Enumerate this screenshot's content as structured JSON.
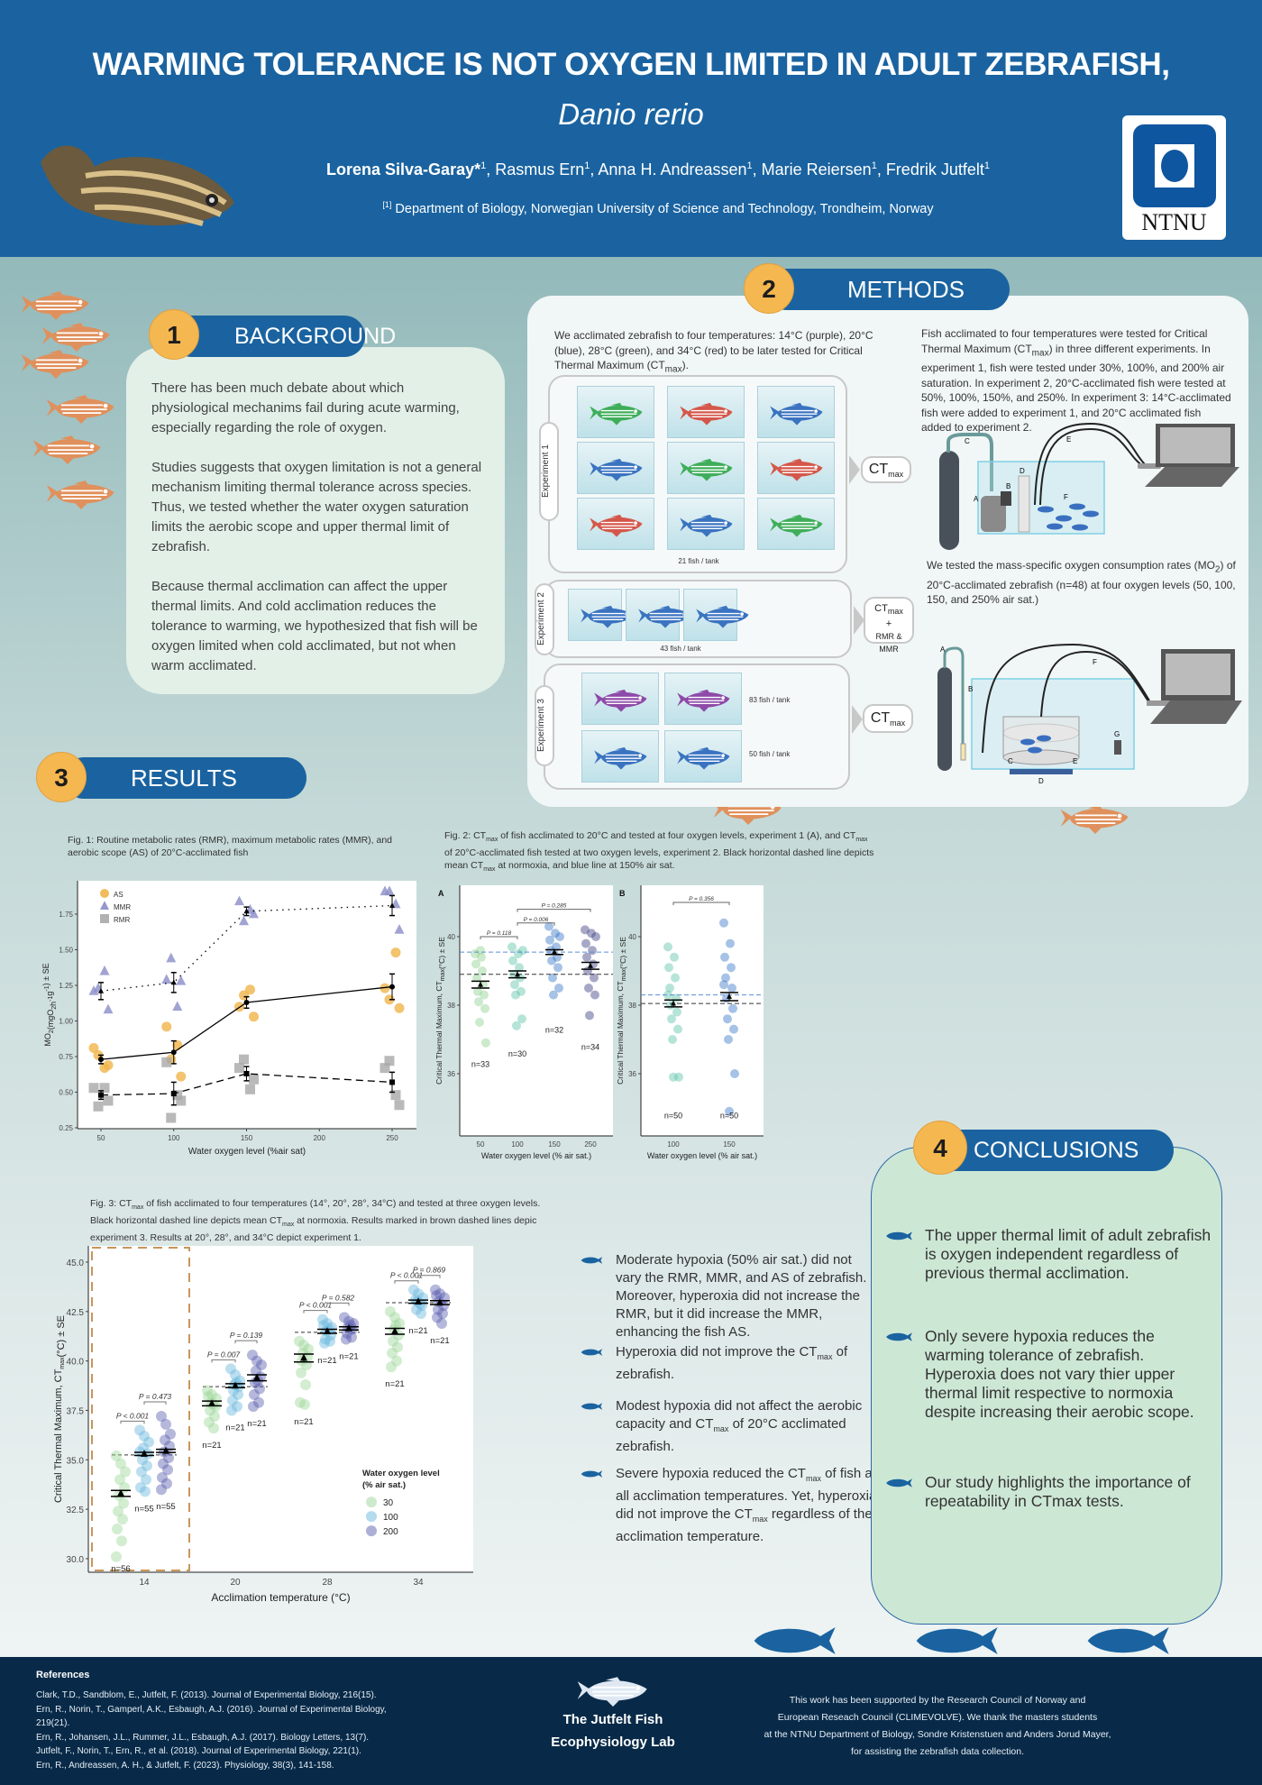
{
  "header": {
    "title": "WARMING TOLERANCE IS NOT OXYGEN LIMITED IN ADULT ZEBRAFISH,",
    "subtitle": "Danio rerio",
    "authors": [
      {
        "name": "Lorena Silva-Garay*",
        "sup": "1",
        "bold": true
      },
      {
        "name": ", Rasmus Ern",
        "sup": "1"
      },
      {
        "name": ", Anna H. Andreassen",
        "sup": "1"
      },
      {
        "name": ", Marie Reiersen",
        "sup": "1"
      },
      {
        "name": ", Fredrik Jutfelt",
        "sup": "1"
      }
    ],
    "affiliation_mark": "[1]",
    "affiliation": " Department of Biology, Norwegian University of Science and Technology, Trondheim, Norway",
    "logo_text": "NTNU"
  },
  "background": {
    "number": "1",
    "title": "BACKGROUND",
    "paragraphs": [
      "There has been much debate about which physiological mechanims fail during acute warming, especially regarding the role of oxygen.",
      "Studies suggests that oxygen limitation is not a general mechanism limiting thermal tolerance across species. Thus, we tested whether the water oxygen saturation limits the aerobic scope and upper thermal limit of zebrafish.",
      "Because thermal acclimation can affect the upper thermal limits. And cold acclimation reduces the tolerance to warming, we hypothesized that fish will be oxygen limited when cold acclimated, but not when warm acclimated."
    ]
  },
  "methods": {
    "number": "2",
    "title": "METHODS",
    "intro": [
      "We acclimated zebrafish to four temperatures: 14°C (purple), 20°C (blue), 28°C (green), and 34°C (red) to be later tested for Critical Thermal Maximum (CT",
      {
        "sub": "max"
      },
      ")."
    ],
    "fish_colors": {
      "purple": "#8e4aa8",
      "blue": "#3a73c0",
      "green": "#3fae5a",
      "red": "#d4574a"
    },
    "experiments": [
      {
        "label": "Experiment 1",
        "count": "21 fish / tank",
        "tanks": [
          "green",
          "red",
          "blue",
          "blue",
          "green",
          "red",
          "red",
          "blue",
          "green"
        ]
      },
      {
        "label": "Experiment 2",
        "count": "43 fish / tank",
        "tanks": [
          "blue",
          "blue",
          "blue"
        ]
      },
      {
        "label": "Experiment 3",
        "counts": [
          "83 fish / tank",
          "50 fish / tank"
        ],
        "tanks": [
          "purple",
          "purple",
          "blue",
          "blue"
        ]
      }
    ],
    "outputs": {
      "ct": "CT",
      "max": "max",
      "plus": "+",
      "rmr_mmr": "RMR & MMR"
    },
    "text_ctmax": [
      "Fish acclimated to four temperatures were tested for Critical Thermal Maximum (CT",
      {
        "sub": "max"
      },
      ") in three different experiments. In experiment 1, fish were tested under 30%, 100%, and 200% air saturation. In experiment 2, 20°C-acclimated fish were tested at 50%, 100%, 150%, and 250%. In experiment 3: 14°C-acclimated fish were added to experiment 1, and 20°C acclimated fish added to experiment 2."
    ],
    "setup1_labels": [
      "A",
      "B",
      "C",
      "D",
      "E",
      "F"
    ],
    "text_mo2": [
      "We tested the mass-specific oxygen consumption rates (MO",
      {
        "sub": "2"
      },
      ") of 20°C-acclimated zebrafish (n=48) at four oxygen levels (50, 100, 150, and 250% air sat.)"
    ],
    "setup2_labels": [
      "A",
      "B",
      "C",
      "D",
      "E",
      "F",
      "G"
    ]
  },
  "results": {
    "number": "3",
    "title": "RESULTS",
    "fig1_caption": [
      "Fig. 1: Routine metabolic rates (RMR), maximum metabolic rates (MMR), and aerobic scope (AS) of 20°C-acclimated fish"
    ],
    "fig2_caption": [
      "Fig. 2: CT",
      {
        "sub": "max"
      },
      " of fish acclimated to 20°C and tested at four oxygen levels, experiment 1 (A), and CT",
      {
        "sub": "max"
      },
      " of 20°C-acclimated fish tested at two oxygen levels, experiment 2. Black horizontal dashed line depicts mean CT",
      {
        "sub": "max"
      },
      " at normoxia, and blue line at 150% air sat."
    ],
    "fig3_caption": [
      "Fig. 3: CT",
      {
        "sub": "max"
      },
      " of fish acclimated to four temperatures (14°, 20°, 28°, 34°C) and tested at three oxygen levels. Black horizontal dashed line depicts mean CT",
      {
        "sub": "max"
      },
      " at normoxia. Results marked in brown dashed lines depic experiment 3. Results at 20°, 28°, and 34°C depict experiment 1."
    ],
    "bullets": [
      [
        "Moderate hypoxia (50% air sat.) did not vary the RMR, MMR, and AS of zebrafish. Moreover, hyperoxia did not increase the RMR, but it did increase the MMR, enhancing the fish AS."
      ],
      [
        "Hyperoxia did not improve the CT",
        {
          "sub": "max"
        },
        " of zebrafish."
      ],
      [
        "Modest hypoxia did not affect the aerobic capacity and CT",
        {
          "sub": "max"
        },
        " of 20°C acclimated zebrafish."
      ],
      [
        "Severe hypoxia reduced the CT",
        {
          "sub": "max"
        },
        " of fish at all acclimation temperatures. Yet, hyperoxia did not improve the CT",
        {
          "sub": "max"
        },
        " regardless of the acclimation temperature."
      ]
    ]
  },
  "conclusions": {
    "number": "4",
    "title": "CONCLUSIONS",
    "items": [
      "The upper thermal limit of adult zebrafish is oxygen independent regardless of previous thermal acclimation.",
      "Only severe hypoxia reduces the warming tolerance of zebrafish. Hyperoxia does not vary thier upper thermal limit respective to normoxia despite increasing their aerobic scope.",
      "Our study highlights the importance of repeatability in CTmax tests."
    ]
  },
  "footer": {
    "references_title": "References",
    "references": [
      "Clark, T.D., Sandblom, E., Jutfelt, F. (2013). Journal of Experimental Biology, 216(15).",
      "Ern, R., Norin, T., Gamperl, A.K., Esbaugh, A.J. (2016). Journal of Experimental Biology, 219(21).",
      "Ern, R., Johansen, J.L., Rummer, J.L., Esbaugh, A.J. (2017). Biology Letters, 13(7).",
      "Jutfelt, F., Norin, T., Ern, R., et al. (2018). Journal of Experimental Biology, 221(1).",
      "Ern, R., Andreassen, A. H., & Jutfelt, F. (2023). Physiology, 38(3), 141-158."
    ],
    "lab_line1": "The Jutfelt Fish",
    "lab_line2": "Ecophysiology Lab",
    "acknowledgement": [
      "This work has been supported by the Research Council of Norway and",
      "European Reseach Council (CLIMEVOLVE). We thank the masters students",
      "at the NTNU Department of Biology, Sondre Kristenstuen and Anders Jorud Mayer,",
      "for assisting the zebrafish data collection."
    ]
  },
  "chart_data": [
    {
      "id": "fig1",
      "type": "scatter",
      "xlabel": "Water oxygen level (%air sat)",
      "ylabel": "MO2(mgO2h-1g-1) ± SE",
      "ylabel_parts": [
        "MO",
        {
          "sub": "2"
        },
        "(mgO",
        {
          "sub": "2"
        },
        "h",
        {
          "sup": "-1"
        },
        "g",
        {
          "sup": "-1"
        },
        ") ± SE"
      ],
      "xlim": [
        30,
        265
      ],
      "ylim": [
        0.25,
        1.95
      ],
      "xticks": [
        50,
        100,
        150,
        200,
        250
      ],
      "yticks": [
        0.25,
        0.5,
        0.75,
        1.0,
        1.25,
        1.5,
        1.75
      ],
      "ytick_labels": [
        "0.25",
        "0.50",
        "0.75",
        "1.00",
        "1.25",
        "1.50",
        "1.75"
      ],
      "legend": "top-left",
      "x": [
        50,
        100,
        150,
        250
      ],
      "series": [
        {
          "name": "AS",
          "color": "#f0b44a",
          "marker": "circle",
          "line": "solid",
          "mean": [
            0.73,
            0.78,
            1.13,
            1.24
          ],
          "se": [
            0.03,
            0.08,
            0.04,
            0.09
          ],
          "points": [
            [
              0.81,
              0.76,
              0.67,
              0.69
            ],
            [
              0.96,
              0.73,
              0.83,
              0.61
            ],
            [
              1.1,
              1.18,
              1.22,
              1.03
            ],
            [
              1.23,
              1.15,
              1.48,
              1.09
            ]
          ]
        },
        {
          "name": "MMR",
          "color": "#8a8cc8",
          "marker": "triangle",
          "line": "dotted",
          "mean": [
            1.21,
            1.27,
            1.77,
            1.81
          ],
          "se": [
            0.06,
            0.07,
            0.03,
            0.07
          ],
          "points": [
            [
              1.21,
              1.23,
              1.35,
              1.08
            ],
            [
              1.29,
              1.44,
              1.1,
              1.28
            ],
            [
              1.84,
              1.7,
              1.78,
              1.75
            ],
            [
              1.91,
              1.91,
              1.82,
              1.64
            ]
          ]
        },
        {
          "name": "RMR",
          "color": "#a8a8a8",
          "marker": "square",
          "line": "dashed",
          "mean": [
            0.48,
            0.49,
            0.63,
            0.57
          ],
          "se": [
            0.03,
            0.08,
            0.05,
            0.07
          ],
          "points": [
            [
              0.53,
              0.4,
              0.53,
              0.44
            ],
            [
              0.71,
              0.32,
              0.48,
              0.44
            ],
            [
              0.67,
              0.73,
              0.52,
              0.59
            ],
            [
              0.67,
              0.72,
              0.48,
              0.41
            ]
          ]
        }
      ]
    },
    {
      "id": "fig2",
      "type": "scatter",
      "panels": [
        {
          "label": "A",
          "xlabel": "Water oxygen level (% air sat.)",
          "ylabel": "Critical Thermal Maximum, CTmax(°C) ± SE",
          "ylim": [
            34.4,
            41.5
          ],
          "yticks": [
            36,
            38,
            40
          ],
          "categories": [
            "50",
            "100",
            "150",
            "250"
          ],
          "colors": [
            "#8fd08f",
            "#5ec4a8",
            "#3a78c8",
            "#3b3d80"
          ],
          "mean": [
            38.6,
            38.9,
            39.55,
            39.15
          ],
          "se": [
            0.1,
            0.1,
            0.07,
            0.1
          ],
          "n": [
            "n=33",
            "n=30",
            "n=32",
            "n=34"
          ],
          "points": [
            [
              39.5,
              39.4,
              39.2,
              39.0,
              38.8,
              38.6,
              38.4,
              38.3,
              38.1,
              37.9,
              37.5,
              36.9,
              39.6
            ],
            [
              39.7,
              39.5,
              39.3,
              39.1,
              38.9,
              38.8,
              38.6,
              38.4,
              38.3,
              37.6,
              37.4,
              39.6
            ],
            [
              40.3,
              40.1,
              39.9,
              39.7,
              39.6,
              39.4,
              39.3,
              39.1,
              38.8,
              38.5,
              38.3,
              40.0
            ],
            [
              40.2,
              40.1,
              39.8,
              39.6,
              39.4,
              39.2,
              39.0,
              38.8,
              38.5,
              38.3,
              37.7,
              40.0
            ]
          ],
          "ref_normoxia": 38.9,
          "ref_150": 39.55,
          "comparisons": [
            {
              "from": 0,
              "to": 1,
              "label": "P = 0.118"
            },
            {
              "from": 1,
              "to": 2,
              "label": "P = 0.006"
            },
            {
              "from": 1,
              "to": 3,
              "label": "P = 0.285"
            }
          ]
        },
        {
          "label": "B",
          "xlabel": "Water oxygen level (% air sat.)",
          "ylabel": "Critical Thermal Maximum, CTmax(°C) ± SE",
          "ylim": [
            34.4,
            41.5
          ],
          "yticks": [
            36,
            38,
            40
          ],
          "categories": [
            "100",
            "150"
          ],
          "colors": [
            "#5ec4a8",
            "#3a78c8"
          ],
          "mean": [
            38.05,
            38.25
          ],
          "se": [
            0.1,
            0.12
          ],
          "n": [
            "n=50",
            "n=50"
          ],
          "points": [
            [
              39.7,
              39.4,
              39.1,
              38.8,
              38.5,
              38.2,
              38.0,
              37.8,
              37.6,
              37.3,
              37.0,
              35.9,
              35.9,
              38.3
            ],
            [
              40.4,
              39.8,
              39.4,
              39.1,
              38.8,
              38.5,
              38.2,
              37.9,
              37.6,
              37.3,
              37.0,
              36.0,
              34.9,
              38.6
            ]
          ],
          "ref_normoxia": 38.05,
          "ref_150": 38.3,
          "comparisons": [
            {
              "from": 0,
              "to": 1,
              "label": "P = 0.356"
            }
          ]
        }
      ]
    },
    {
      "id": "fig3",
      "type": "scatter",
      "xlabel": "Acclimation temperature (°C)",
      "ylabel": "Critical Thermal Maximum, CTmax(°C) ± SE",
      "ylim": [
        29.5,
        45.6
      ],
      "yticks": [
        30.0,
        32.5,
        35.0,
        37.5,
        40.0,
        42.5,
        45.0
      ],
      "ytick_labels": [
        "30.0",
        "32.5",
        "35.0",
        "37.5",
        "40.0",
        "42.5",
        "45.0"
      ],
      "categories": [
        "14",
        "20",
        "28",
        "34"
      ],
      "legend": {
        "title_line1": "Water oxygen level",
        "title_line2": "(% air sat.)",
        "position": "bottom-right"
      },
      "series": [
        {
          "name": "30",
          "color": "#9ed69a",
          "mean": [
            33.3,
            37.85,
            40.15,
            41.5
          ],
          "se": [
            0.15,
            0.12,
            0.2,
            0.15
          ],
          "n": [
            "n=56",
            "n=21",
            "n=21",
            "n=21"
          ],
          "points": [
            [
              35.2,
              34.8,
              34.4,
              34.0,
              33.6,
              33.2,
              32.8,
              32.4,
              32.0,
              31.5,
              30.9,
              30.1
            ],
            [
              38.5,
              38.3,
              38.1,
              37.9,
              37.7,
              37.5,
              37.2,
              36.9,
              36.6,
              38.2,
              37.8
            ],
            [
              41.0,
              40.8,
              40.6,
              40.4,
              40.2,
              40.0,
              39.8,
              39.4,
              38.8,
              37.9,
              37.8
            ],
            [
              42.5,
              42.2,
              41.9,
              41.6,
              41.3,
              41.0,
              40.7,
              40.4,
              40.0,
              39.7,
              41.8
            ]
          ]
        },
        {
          "name": "100",
          "color": "#6ab7de",
          "mean": [
            35.3,
            38.75,
            41.5,
            43.0
          ],
          "se": [
            0.08,
            0.1,
            0.1,
            0.08
          ],
          "n": [
            "n=55",
            "n=21",
            "n=21",
            "n=21"
          ],
          "points": [
            [
              36.5,
              36.2,
              35.9,
              35.6,
              35.3,
              35.0,
              34.7,
              34.4,
              34.0,
              33.6,
              33.4,
              35.4
            ],
            [
              39.6,
              39.3,
              39.0,
              38.8,
              38.7,
              38.5,
              38.3,
              38.0,
              37.7,
              37.5,
              38.9
            ],
            [
              42.1,
              41.9,
              41.7,
              41.5,
              41.3,
              41.1,
              41.0,
              40.9,
              41.6,
              41.8
            ],
            [
              43.6,
              43.4,
              43.2,
              43.0,
              42.8,
              42.6,
              42.4,
              43.1,
              42.9
            ]
          ]
        },
        {
          "name": "200",
          "color": "#5b5fb0",
          "mean": [
            35.45,
            39.15,
            41.65,
            42.95
          ],
          "se": [
            0.08,
            0.15,
            0.08,
            0.1
          ],
          "n": [
            "n=55",
            "n=21",
            "n=21",
            "n=21"
          ],
          "points": [
            [
              37.2,
              36.8,
              36.3,
              36.0,
              35.7,
              35.4,
              35.1,
              34.8,
              34.5,
              34.1,
              33.8,
              33.5
            ],
            [
              40.3,
              40.0,
              39.8,
              39.5,
              39.2,
              38.9,
              38.6,
              38.3,
              37.9,
              37.7,
              39.0
            ],
            [
              42.2,
              42.0,
              41.9,
              41.7,
              41.6,
              41.4,
              41.2,
              41.1,
              41.8
            ],
            [
              43.6,
              43.4,
              43.2,
              43.0,
              42.8,
              42.6,
              42.4,
              42.2,
              41.9,
              43.3
            ]
          ]
        }
      ],
      "normoxia_mean": [
        35.25,
        38.7,
        41.45,
        42.95
      ],
      "comparisons": [
        [
          "P < 0.001",
          "P = 0.473"
        ],
        [
          "P = 0.007",
          "P = 0.139"
        ],
        [
          "P < 0.001",
          "P = 0.582"
        ],
        [
          "P < 0.001",
          "P = 0.869"
        ]
      ],
      "experiment3_highlight": "14"
    }
  ]
}
